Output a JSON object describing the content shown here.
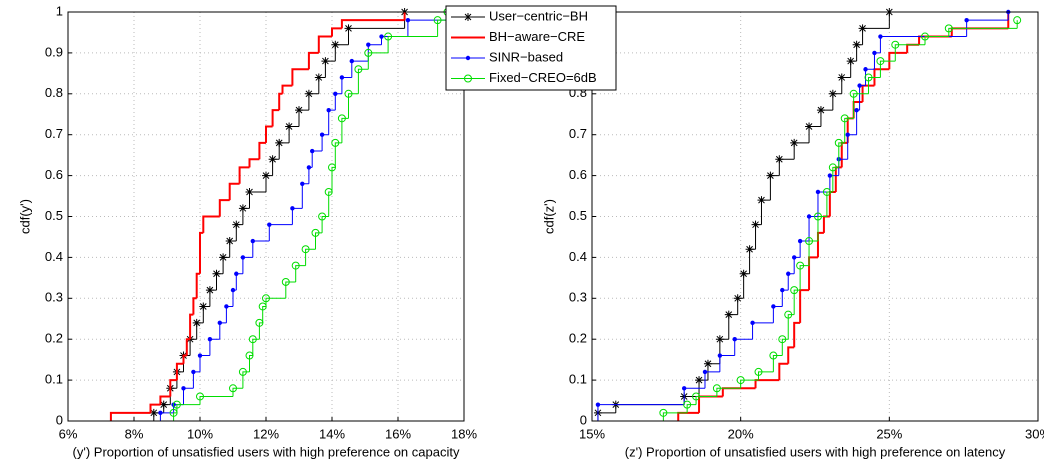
{
  "chart_data": [
    {
      "type": "step",
      "x_label": "(y') Proportion of unsatisfied users with high preference on capacity",
      "y_label": "cdf(y')",
      "xlim": [
        6,
        18
      ],
      "xticks": [
        {
          "value": 6,
          "label": "6%"
        },
        {
          "value": 8,
          "label": "8%"
        },
        {
          "value": 10,
          "label": "10%"
        },
        {
          "value": 12,
          "label": "12%"
        },
        {
          "value": 14,
          "label": "14%"
        },
        {
          "value": 16,
          "label": "16%"
        },
        {
          "value": 18,
          "label": "18%"
        }
      ],
      "ylim": [
        0,
        1
      ],
      "yticks": [
        0,
        0.1,
        0.2,
        0.3,
        0.4,
        0.5,
        0.6,
        0.7,
        0.8,
        0.9,
        1
      ],
      "grid": true,
      "legend": "upper right",
      "series": [
        {
          "name": "User−centric−BH",
          "color": "#000000",
          "marker": "star",
          "x": [
            8.6,
            8.9,
            9.1,
            9.3,
            9.5,
            9.7,
            9.9,
            10.1,
            10.3,
            10.5,
            10.7,
            10.9,
            11.1,
            11.3,
            11.5,
            12.0,
            12.2,
            12.4,
            12.7,
            13.0,
            13.3,
            13.6,
            13.8,
            14.1,
            14.5,
            16.2
          ],
          "values": [
            0.02,
            0.04,
            0.08,
            0.12,
            0.16,
            0.2,
            0.24,
            0.28,
            0.32,
            0.36,
            0.4,
            0.44,
            0.48,
            0.52,
            0.56,
            0.6,
            0.64,
            0.68,
            0.72,
            0.76,
            0.8,
            0.84,
            0.88,
            0.92,
            0.96,
            1.0
          ]
        },
        {
          "name": "BH−aware−CRE",
          "color": "#ff0000",
          "marker": "none",
          "x": [
            7.3,
            8.5,
            8.8,
            9.1,
            9.3,
            9.5,
            9.6,
            9.7,
            9.8,
            9.9,
            10.0,
            10.1,
            10.6,
            10.9,
            11.2,
            11.5,
            11.8,
            12.0,
            12.2,
            12.4,
            12.5,
            12.8,
            13.3,
            13.6,
            14.0,
            14.3,
            16.2
          ],
          "values": [
            0.02,
            0.04,
            0.06,
            0.1,
            0.14,
            0.16,
            0.2,
            0.26,
            0.3,
            0.36,
            0.46,
            0.5,
            0.54,
            0.58,
            0.62,
            0.64,
            0.68,
            0.72,
            0.76,
            0.8,
            0.82,
            0.86,
            0.9,
            0.94,
            0.96,
            0.98,
            1.0
          ]
        },
        {
          "name": "SINR−based",
          "color": "#0000ff",
          "marker": "dot",
          "x": [
            8.8,
            9.2,
            9.5,
            9.8,
            10.0,
            10.3,
            10.6,
            10.8,
            11.0,
            11.1,
            11.3,
            11.6,
            12.1,
            12.8,
            13.1,
            13.3,
            13.4,
            13.7,
            13.9,
            14.1,
            14.3,
            14.6,
            15.1,
            15.5,
            16.3,
            17.6
          ],
          "values": [
            0.02,
            0.04,
            0.08,
            0.12,
            0.16,
            0.2,
            0.24,
            0.28,
            0.32,
            0.36,
            0.4,
            0.44,
            0.48,
            0.52,
            0.58,
            0.62,
            0.66,
            0.7,
            0.76,
            0.8,
            0.84,
            0.88,
            0.92,
            0.94,
            0.98,
            1.0
          ]
        },
        {
          "name": "Fixed−CREO=6dB",
          "color": "#00dd00",
          "marker": "circle",
          "x": [
            9.2,
            9.3,
            10.0,
            11.0,
            11.3,
            11.5,
            11.6,
            11.8,
            11.9,
            12.0,
            12.6,
            12.9,
            13.2,
            13.5,
            13.7,
            13.9,
            14.0,
            14.1,
            14.3,
            14.5,
            14.8,
            15.1,
            15.7,
            17.2,
            17.5
          ],
          "values": [
            0.02,
            0.04,
            0.06,
            0.08,
            0.12,
            0.16,
            0.2,
            0.24,
            0.28,
            0.3,
            0.34,
            0.38,
            0.42,
            0.46,
            0.5,
            0.56,
            0.62,
            0.68,
            0.74,
            0.8,
            0.86,
            0.9,
            0.94,
            0.98,
            1.0
          ]
        }
      ]
    },
    {
      "type": "step",
      "x_label": "(z') Proportion of unsatisfied users with high preference on latency",
      "y_label": "cdf(z')",
      "xlim": [
        15,
        30
      ],
      "xticks": [
        {
          "value": 15,
          "label": "15%"
        },
        {
          "value": 20,
          "label": "20%"
        },
        {
          "value": 25,
          "label": "25%"
        },
        {
          "value": 30,
          "label": "30%"
        }
      ],
      "ylim": [
        0,
        1
      ],
      "yticks": [
        0,
        0.1,
        0.2,
        0.3,
        0.4,
        0.5,
        0.6,
        0.7,
        0.8,
        0.9,
        1
      ],
      "grid": true,
      "series": [
        {
          "color": "#000000",
          "marker": "star",
          "x": [
            15.2,
            15.8,
            18.1,
            18.6,
            18.9,
            19.3,
            19.6,
            19.9,
            20.1,
            20.3,
            20.5,
            20.7,
            21.0,
            21.3,
            21.8,
            22.3,
            22.7,
            23.1,
            23.4,
            23.7,
            23.9,
            24.1,
            25.0
          ],
          "values": [
            0.02,
            0.04,
            0.06,
            0.1,
            0.14,
            0.2,
            0.26,
            0.3,
            0.36,
            0.42,
            0.48,
            0.54,
            0.6,
            0.64,
            0.68,
            0.72,
            0.76,
            0.8,
            0.84,
            0.88,
            0.92,
            0.96,
            1.0
          ]
        },
        {
          "color": "#ff0000",
          "marker": "none",
          "x": [
            17.9,
            18.6,
            19.4,
            20.5,
            21.3,
            21.6,
            21.8,
            22.0,
            22.3,
            22.6,
            22.8,
            23.0,
            23.2,
            23.4,
            23.6,
            23.8,
            24.1,
            24.5,
            25.0,
            25.6,
            26.0,
            27.1,
            29.0
          ],
          "values": [
            0.02,
            0.06,
            0.08,
            0.1,
            0.14,
            0.18,
            0.24,
            0.32,
            0.4,
            0.46,
            0.5,
            0.56,
            0.62,
            0.68,
            0.74,
            0.78,
            0.82,
            0.86,
            0.9,
            0.92,
            0.94,
            0.96,
            1.0
          ]
        },
        {
          "color": "#0000ff",
          "marker": "dot",
          "x": [
            15.2,
            18.1,
            18.8,
            19.3,
            19.8,
            20.4,
            21.1,
            21.4,
            21.6,
            21.8,
            22.0,
            22.3,
            22.6,
            23.0,
            23.3,
            23.6,
            23.9,
            24.0,
            24.2,
            24.5,
            24.7,
            27.6,
            29.0
          ],
          "values": [
            0.04,
            0.08,
            0.12,
            0.16,
            0.2,
            0.24,
            0.28,
            0.32,
            0.36,
            0.4,
            0.44,
            0.5,
            0.56,
            0.6,
            0.64,
            0.7,
            0.76,
            0.82,
            0.86,
            0.9,
            0.94,
            0.98,
            1.0
          ]
        },
        {
          "color": "#00dd00",
          "marker": "circle",
          "x": [
            17.4,
            18.2,
            18.5,
            19.2,
            20.0,
            20.6,
            21.1,
            21.4,
            21.6,
            21.8,
            22.0,
            22.3,
            22.6,
            22.9,
            23.1,
            23.3,
            23.5,
            23.8,
            24.3,
            24.7,
            25.2,
            26.2,
            27.0,
            29.3
          ],
          "values": [
            0.02,
            0.04,
            0.06,
            0.08,
            0.1,
            0.12,
            0.16,
            0.2,
            0.26,
            0.32,
            0.38,
            0.44,
            0.5,
            0.56,
            0.62,
            0.68,
            0.74,
            0.8,
            0.84,
            0.88,
            0.92,
            0.94,
            0.96,
            0.98
          ]
        }
      ]
    }
  ]
}
